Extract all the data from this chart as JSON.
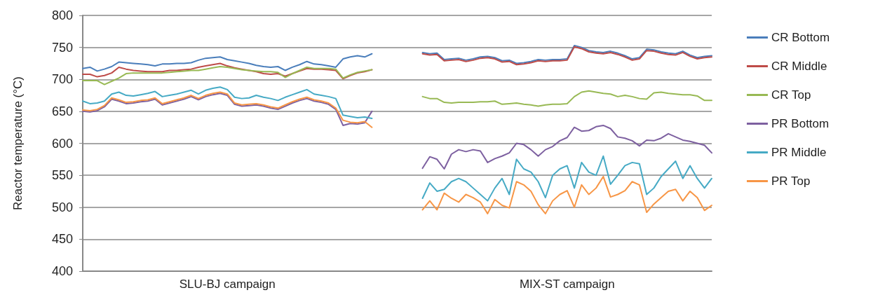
{
  "chart_data": {
    "type": "line",
    "ylabel": "Reactor temperature (°C)",
    "ylim": [
      400,
      800
    ],
    "yticks": [
      400,
      450,
      500,
      550,
      600,
      650,
      700,
      750,
      800
    ],
    "grid": "y",
    "marker": "none",
    "line_style": "solid",
    "legend": "right",
    "categories": [
      null,
      null,
      null,
      null,
      null,
      null,
      null,
      null,
      null,
      null,
      null,
      null,
      null,
      null,
      null,
      null,
      null,
      null,
      null,
      null,
      "SLU-BJ campaign",
      null,
      null,
      null,
      null,
      null,
      null,
      null,
      null,
      null,
      null,
      null,
      null,
      null,
      null,
      null,
      null,
      null,
      null,
      null,
      null,
      null,
      null,
      null,
      null,
      null,
      null,
      null,
      null,
      null,
      null,
      null,
      null,
      null,
      null,
      null,
      null,
      null,
      null,
      null,
      null,
      null,
      null,
      null,
      null,
      null,
      null,
      "MIX-ST campaign",
      null,
      null,
      null,
      null,
      null,
      null,
      null,
      null,
      null,
      null,
      null,
      null,
      null,
      null,
      null,
      null,
      null,
      null,
      null,
      null
    ],
    "series": [
      {
        "name": "CR Bottom",
        "color": "#4a7ebb",
        "values": [
          717,
          719,
          713,
          716,
          720,
          727,
          726,
          725,
          724,
          723,
          721,
          724,
          724,
          725,
          725,
          726,
          730,
          733,
          734,
          735,
          731,
          729,
          727,
          725,
          722,
          720,
          719,
          720,
          714,
          719,
          723,
          728,
          724,
          723,
          721,
          719,
          732,
          735,
          737,
          735,
          740,
          null,
          null,
          null,
          null,
          null,
          null,
          742,
          740,
          741,
          731,
          732,
          733,
          730,
          732,
          735,
          736,
          734,
          729,
          730,
          725,
          726,
          728,
          731,
          730,
          731,
          731,
          732,
          753,
          750,
          745,
          743,
          742,
          744,
          741,
          737,
          732,
          734,
          747,
          746,
          743,
          741,
          740,
          744,
          738,
          734,
          736,
          737
        ]
      },
      {
        "name": "CR Middle",
        "color": "#be4b48",
        "values": [
          708,
          708,
          704,
          706,
          710,
          719,
          716,
          714,
          713,
          712,
          712,
          712,
          714,
          714,
          715,
          716,
          719,
          721,
          723,
          725,
          721,
          718,
          716,
          714,
          712,
          709,
          708,
          709,
          705,
          709,
          713,
          717,
          716,
          716,
          715,
          714,
          701,
          706,
          710,
          712,
          715,
          null,
          null,
          null,
          null,
          null,
          null,
          740,
          738,
          739,
          729,
          730,
          731,
          728,
          730,
          733,
          734,
          732,
          727,
          728,
          723,
          724,
          726,
          729,
          728,
          729,
          729,
          730,
          751,
          748,
          743,
          741,
          740,
          742,
          739,
          735,
          730,
          732,
          745,
          744,
          741,
          739,
          738,
          742,
          736,
          732,
          734,
          735
        ]
      },
      {
        "name": "CR Top",
        "color": "#98b954",
        "values": [
          698,
          698,
          698,
          692,
          697,
          702,
          709,
          710,
          710,
          710,
          710,
          710,
          711,
          712,
          713,
          714,
          714,
          716,
          718,
          720,
          719,
          717,
          715,
          714,
          713,
          712,
          712,
          711,
          703,
          709,
          714,
          719,
          717,
          717,
          717,
          716,
          702,
          707,
          711,
          713,
          715,
          null,
          null,
          null,
          null,
          null,
          null,
          673,
          670,
          670,
          664,
          663,
          664,
          664,
          664,
          665,
          665,
          666,
          661,
          662,
          663,
          661,
          660,
          658,
          660,
          661,
          661,
          662,
          673,
          680,
          682,
          680,
          678,
          677,
          673,
          675,
          673,
          670,
          669,
          679,
          680,
          678,
          677,
          676,
          676,
          674,
          667,
          667
        ]
      },
      {
        "name": "PR Bottom",
        "color": "#7d60a0",
        "values": [
          650,
          649,
          651,
          657,
          669,
          666,
          662,
          663,
          665,
          666,
          669,
          660,
          663,
          666,
          669,
          673,
          668,
          673,
          676,
          678,
          675,
          661,
          658,
          659,
          660,
          658,
          655,
          653,
          658,
          663,
          667,
          670,
          666,
          664,
          661,
          653,
          628,
          631,
          630,
          632,
          650,
          null,
          null,
          null,
          null,
          null,
          null,
          561,
          579,
          575,
          560,
          583,
          590,
          587,
          590,
          588,
          570,
          576,
          580,
          585,
          600,
          598,
          590,
          580,
          590,
          595,
          604,
          609,
          625,
          619,
          620,
          626,
          628,
          623,
          610,
          608,
          604,
          596,
          605,
          604,
          608,
          615,
          610,
          605,
          603,
          600,
          597,
          585
        ]
      },
      {
        "name": "PR Middle",
        "color": "#46aac5",
        "values": [
          666,
          662,
          663,
          666,
          677,
          680,
          675,
          674,
          676,
          678,
          681,
          673,
          675,
          677,
          680,
          683,
          677,
          683,
          686,
          688,
          684,
          672,
          670,
          671,
          675,
          672,
          670,
          667,
          672,
          676,
          680,
          684,
          677,
          675,
          673,
          670,
          644,
          642,
          640,
          641,
          639,
          null,
          null,
          null,
          null,
          null,
          null,
          514,
          538,
          525,
          528,
          540,
          545,
          540,
          530,
          520,
          510,
          530,
          545,
          520,
          575,
          560,
          555,
          540,
          515,
          550,
          560,
          565,
          530,
          570,
          555,
          550,
          580,
          536,
          550,
          565,
          570,
          568,
          520,
          530,
          548,
          560,
          572,
          545,
          565,
          545,
          530,
          545
        ]
      },
      {
        "name": "PR Top",
        "color": "#f79646",
        "values": [
          652,
          651,
          653,
          659,
          671,
          668,
          664,
          665,
          667,
          668,
          671,
          662,
          665,
          668,
          671,
          675,
          670,
          675,
          678,
          680,
          677,
          663,
          660,
          661,
          662,
          660,
          657,
          655,
          660,
          665,
          669,
          672,
          668,
          666,
          663,
          655,
          636,
          633,
          632,
          634,
          625,
          null,
          null,
          null,
          null,
          null,
          null,
          496,
          510,
          496,
          522,
          514,
          508,
          520,
          515,
          508,
          490,
          512,
          503,
          499,
          540,
          535,
          525,
          504,
          490,
          510,
          520,
          526,
          500,
          535,
          520,
          530,
          548,
          516,
          520,
          526,
          540,
          535,
          492,
          505,
          515,
          525,
          528,
          510,
          525,
          515,
          495,
          503
        ]
      }
    ]
  }
}
